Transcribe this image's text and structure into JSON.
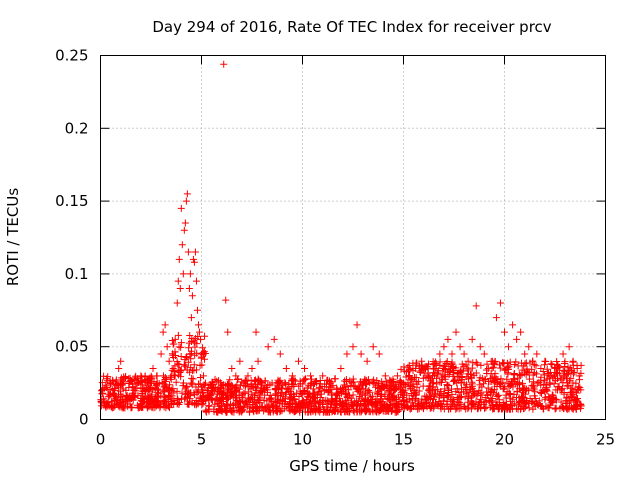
{
  "chart_data": {
    "type": "scatter",
    "title": "Day 294 of 2016, Rate Of TEC Index for receiver prcv",
    "xlabel": "GPS time / hours",
    "ylabel": "ROTI / TECUs",
    "xlim": [
      0,
      25
    ],
    "ylim": [
      0,
      0.25
    ],
    "xticks": [
      0,
      5,
      10,
      15,
      20,
      25
    ],
    "xtick_labels": [
      "0",
      "5",
      "10",
      "15",
      "20",
      "25"
    ],
    "yticks": [
      0,
      0.05,
      0.1,
      0.15,
      0.2,
      0.25
    ],
    "ytick_labels": [
      "0",
      "0.05",
      "0.1",
      "0.15",
      "0.2",
      "0.25"
    ],
    "grid": true,
    "marker": "plus",
    "color": "#ff0000",
    "series": [
      {
        "name": "ROTI",
        "x": [
          0.1,
          0.3,
          0.5,
          0.7,
          0.9,
          1.0,
          1.2,
          1.4,
          1.6,
          1.8,
          2.0,
          2.2,
          2.4,
          2.6,
          2.8,
          3.0,
          3.1,
          3.2,
          3.3,
          3.4,
          3.5,
          3.6,
          3.7,
          3.8,
          3.85,
          3.9,
          3.95,
          4.0,
          4.05,
          4.1,
          4.15,
          4.2,
          4.25,
          4.3,
          4.35,
          4.4,
          4.45,
          4.5,
          4.55,
          4.6,
          4.65,
          4.7,
          4.75,
          4.8,
          4.85,
          4.9,
          4.95,
          5.0,
          5.1,
          5.2,
          5.3,
          5.5,
          5.7,
          5.9,
          6.1,
          6.2,
          6.3,
          6.5,
          6.7,
          6.9,
          7.1,
          7.3,
          7.5,
          7.7,
          7.8,
          8.0,
          8.3,
          8.6,
          8.9,
          9.2,
          9.5,
          9.8,
          10.1,
          10.4,
          10.7,
          11.0,
          11.3,
          11.6,
          11.9,
          12.2,
          12.5,
          12.7,
          12.9,
          13.2,
          13.5,
          13.8,
          14.1,
          14.4,
          14.7,
          15.0,
          15.3,
          15.6,
          15.9,
          16.2,
          16.5,
          16.8,
          17.0,
          17.2,
          17.4,
          17.6,
          17.8,
          18.0,
          18.2,
          18.4,
          18.6,
          18.8,
          19.0,
          19.2,
          19.4,
          19.6,
          19.8,
          20.0,
          20.2,
          20.4,
          20.6,
          20.8,
          21.0,
          21.2,
          21.4,
          21.6,
          21.8,
          22.0,
          22.3,
          22.6,
          22.9,
          23.2,
          23.4,
          23.6,
          23.7
        ],
        "y": [
          0.018,
          0.022,
          0.025,
          0.02,
          0.035,
          0.04,
          0.028,
          0.022,
          0.018,
          0.025,
          0.03,
          0.02,
          0.028,
          0.035,
          0.03,
          0.045,
          0.06,
          0.065,
          0.05,
          0.04,
          0.03,
          0.035,
          0.055,
          0.08,
          0.095,
          0.11,
          0.09,
          0.145,
          0.12,
          0.1,
          0.13,
          0.135,
          0.15,
          0.155,
          0.115,
          0.09,
          0.1,
          0.07,
          0.085,
          0.11,
          0.108,
          0.115,
          0.095,
          0.075,
          0.065,
          0.06,
          0.055,
          0.045,
          0.03,
          0.025,
          0.02,
          0.018,
          0.022,
          0.015,
          0.244,
          0.082,
          0.06,
          0.035,
          0.03,
          0.04,
          0.025,
          0.03,
          0.035,
          0.06,
          0.04,
          0.025,
          0.05,
          0.055,
          0.045,
          0.035,
          0.03,
          0.04,
          0.035,
          0.03,
          0.025,
          0.03,
          0.02,
          0.028,
          0.035,
          0.045,
          0.05,
          0.065,
          0.045,
          0.04,
          0.05,
          0.045,
          0.03,
          0.025,
          0.03,
          0.025,
          0.03,
          0.035,
          0.04,
          0.03,
          0.035,
          0.045,
          0.05,
          0.055,
          0.045,
          0.06,
          0.05,
          0.045,
          0.04,
          0.055,
          0.078,
          0.05,
          0.045,
          0.035,
          0.04,
          0.07,
          0.08,
          0.06,
          0.05,
          0.065,
          0.055,
          0.06,
          0.045,
          0.05,
          0.04,
          0.045,
          0.035,
          0.04,
          0.03,
          0.035,
          0.045,
          0.05,
          0.04,
          0.035,
          0.03
        ]
      }
    ],
    "band": {
      "description": "dense baseline cluster",
      "segments": [
        {
          "x0": 0,
          "x1": 3.5,
          "ymin": 0.008,
          "ymax": 0.03
        },
        {
          "x0": 3.5,
          "x1": 5.2,
          "ymin": 0.01,
          "ymax": 0.06
        },
        {
          "x0": 5.2,
          "x1": 14.8,
          "ymin": 0.005,
          "ymax": 0.028
        },
        {
          "x0": 14.8,
          "x1": 23.8,
          "ymin": 0.007,
          "ymax": 0.04
        }
      ]
    }
  }
}
